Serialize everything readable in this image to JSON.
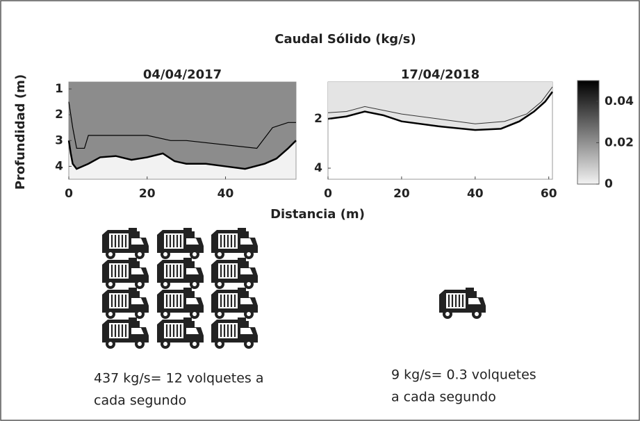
{
  "chart_data": [
    {
      "type": "heatmap-profile",
      "title": "04/04/2017",
      "xlim": [
        0,
        58
      ],
      "ylim": [
        0.73,
        4.5
      ],
      "y_reversed": true,
      "xticks": [
        0,
        20,
        40
      ],
      "yticks": [
        1,
        2,
        3,
        4
      ],
      "fill_color": "#8c8c8c",
      "frame_color": "#f2f2f2",
      "lines": [
        {
          "color": "#000000",
          "width": 2.5,
          "x": [
            0,
            0.5,
            1,
            2,
            5,
            8,
            12,
            16,
            20,
            24,
            27,
            30,
            35,
            40,
            45,
            50,
            53,
            56,
            58
          ],
          "values": [
            3.0,
            3.5,
            3.9,
            4.1,
            3.9,
            3.65,
            3.6,
            3.75,
            3.65,
            3.5,
            3.8,
            3.9,
            3.9,
            4.0,
            4.1,
            3.9,
            3.7,
            3.3,
            3.0
          ]
        },
        {
          "color": "#000000",
          "width": 1.2,
          "x": [
            0,
            1,
            2,
            4,
            5,
            20,
            26,
            30,
            48,
            52,
            56,
            58
          ],
          "values": [
            1.5,
            2.5,
            3.3,
            3.3,
            2.8,
            2.8,
            3.0,
            3.0,
            3.3,
            2.5,
            2.3,
            2.3
          ]
        }
      ]
    },
    {
      "type": "heatmap-profile",
      "title": "17/04/2018",
      "xlim": [
        0,
        61
      ],
      "ylim": [
        0.5,
        4.45
      ],
      "y_reversed": true,
      "xticks": [
        0,
        20,
        40,
        60
      ],
      "yticks": [
        2,
        4
      ],
      "fill_color": "#e4e4e4",
      "frame_color": "#ffffff",
      "lines": [
        {
          "color": "#000000",
          "width": 2.5,
          "x": [
            0,
            5,
            10,
            15,
            20,
            30,
            40,
            47,
            52,
            56,
            59,
            61
          ],
          "values": [
            2.0,
            1.9,
            1.7,
            1.85,
            2.1,
            2.3,
            2.45,
            2.4,
            2.1,
            1.7,
            1.3,
            0.9
          ]
        },
        {
          "color": "#333333",
          "width": 1,
          "x": [
            0,
            5,
            10,
            20,
            30,
            40,
            48,
            54,
            58,
            61
          ],
          "values": [
            1.75,
            1.7,
            1.5,
            1.8,
            2.0,
            2.2,
            2.1,
            1.8,
            1.3,
            0.7
          ]
        }
      ]
    },
    {
      "type": "colorbar",
      "clim": [
        0,
        0.05
      ],
      "ticks": [
        0,
        0.02,
        0.04
      ],
      "colormap": [
        "#f2f2f2",
        "#000000"
      ]
    }
  ],
  "title": "Caudal Sólido (kg/s)",
  "y_label": "Profundidad (m)",
  "x_label": "Distancia (m)",
  "captions": [
    [
      "437 kg/s= 12 volquetes a",
      "cada segundo"
    ],
    [
      "9 kg/s= 0.3 volquetes",
      "a cada segundo"
    ]
  ]
}
